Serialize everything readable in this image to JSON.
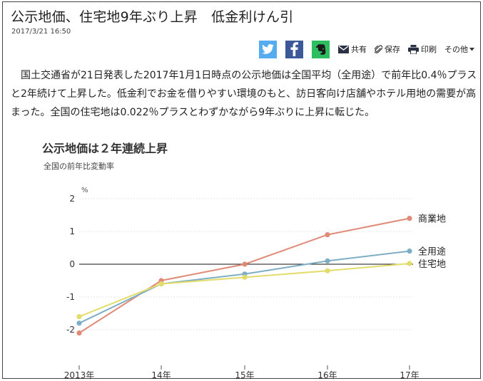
{
  "article": {
    "headline": "公示地価、住宅地9年ぶり上昇　低金利けん引",
    "timestamp": "2017/3/21 16:50",
    "body": "国土交通省が21日発表した2017年1月1日時点の公示地価は全国平均（全用途）で前年比0.4％プラスと2年続けて上昇した。低金利でお金を借りやすい環境のもと、訪日客向け店舗やホテル用地の需要が高まった。全国の住宅地は0.022％プラスとわずかながら9年ぶりに上昇に転じた。"
  },
  "toolbar": {
    "twitter_icon": "twitter-icon",
    "facebook_icon": "facebook-icon",
    "evernote_icon": "evernote-icon",
    "share_label": "共有",
    "save_label": "保存",
    "print_label": "印刷",
    "more_label": "その他",
    "colors": {
      "twitter": "#55acee",
      "facebook": "#3b5998",
      "evernote": "#2dbe60"
    }
  },
  "chart_data": {
    "type": "line",
    "title": "公示地価は２年連続上昇",
    "subtitle": "全国の前年比変動率",
    "ylabel_unit": "%",
    "categories": [
      "2013年",
      "14年",
      "15年",
      "16年",
      "17年"
    ],
    "ylim": [
      -2.3,
      2.2
    ],
    "yticks": [
      2,
      1,
      0,
      -1,
      -2
    ],
    "grid": true,
    "series": [
      {
        "name": "商業地",
        "values": [
          -2.1,
          -0.5,
          0.0,
          0.9,
          1.4
        ],
        "color": "#e08a78"
      },
      {
        "name": "全用途",
        "values": [
          -1.8,
          -0.6,
          -0.3,
          0.1,
          0.4
        ],
        "color": "#7eaec4"
      },
      {
        "name": "住宅地",
        "values": [
          -1.6,
          -0.6,
          -0.4,
          -0.2,
          0.022
        ],
        "color": "#e2dc6a"
      }
    ]
  }
}
